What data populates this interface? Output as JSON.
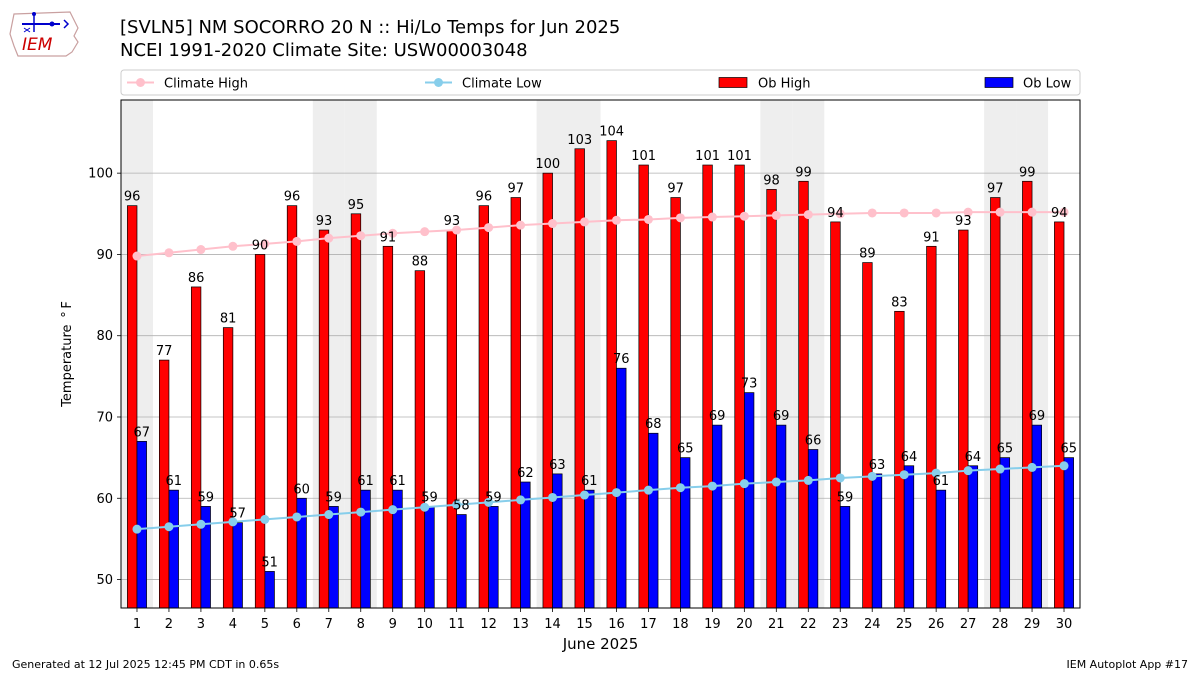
{
  "header": {
    "title_line1": "[SVLN5] NM SOCORRO 20 N :: Hi/Lo Temps for Jun 2025",
    "title_line2": "NCEI 1991-2020 Climate Site: USW00003048",
    "logo_text": "IEM"
  },
  "footer": {
    "left": "Generated at 12 Jul 2025 12:45 PM CDT in 0.65s",
    "right": "IEM Autoplot App #17"
  },
  "colors": {
    "ob_high": "#ff0000",
    "ob_low": "#0000ff",
    "climate_high": "#ffc0cb",
    "climate_low": "#87ceeb",
    "weekend_shade": "#eeeeee"
  },
  "chart_data": {
    "type": "bar",
    "xlabel": "June 2025",
    "ylabel": "Temperature $^\\circ$F",
    "ylim": [
      46.5,
      109
    ],
    "yticks": [
      50,
      60,
      70,
      80,
      90,
      100
    ],
    "grid": "horizontal",
    "legend_placement": "top",
    "categories": [
      "1",
      "2",
      "3",
      "4",
      "5",
      "6",
      "7",
      "8",
      "9",
      "10",
      "11",
      "12",
      "13",
      "14",
      "15",
      "16",
      "17",
      "18",
      "19",
      "20",
      "21",
      "22",
      "23",
      "24",
      "25",
      "26",
      "27",
      "28",
      "29",
      "30"
    ],
    "shaded_days": [
      1,
      7,
      8,
      14,
      15,
      21,
      22,
      28,
      29
    ],
    "series": [
      {
        "name": "Ob High",
        "kind": "bar",
        "color": "#ff0000",
        "values": [
          96,
          77,
          86,
          81,
          90,
          96,
          93,
          95,
          91,
          88,
          93,
          96,
          97,
          100,
          103,
          104,
          101,
          97,
          101,
          101,
          98,
          99,
          94,
          89,
          83,
          91,
          93,
          97,
          99,
          94
        ],
        "labels": [
          "96",
          "77",
          "86",
          "81",
          "90",
          "96",
          "93",
          "95",
          "91",
          "88",
          "93",
          "96",
          "97",
          "100",
          "103",
          "104",
          "101",
          "97",
          "101",
          "101",
          "98",
          "99",
          "94",
          "89",
          "83",
          "91",
          "93",
          "97",
          "99",
          "94"
        ]
      },
      {
        "name": "Ob Low",
        "kind": "bar",
        "color": "#0000ff",
        "values": [
          67,
          61,
          59,
          57,
          51,
          60,
          59,
          61,
          61,
          59,
          58,
          59,
          62,
          63,
          61,
          76,
          68,
          65,
          69,
          73,
          69,
          66,
          59,
          63,
          64,
          61,
          64,
          65,
          69,
          65
        ],
        "labels": [
          "67",
          "61",
          "59",
          "57",
          "51",
          "60",
          "59",
          "61",
          "61",
          "59",
          "58",
          "59",
          "62",
          "63",
          "61",
          "76",
          "68",
          "65",
          "69",
          "73",
          "69",
          "66",
          "59",
          "63",
          "64",
          "61",
          "64",
          "65",
          "69",
          "65"
        ]
      },
      {
        "name": "Climate High",
        "kind": "line",
        "color": "#ffc0cb",
        "values": [
          89.8,
          90.2,
          90.6,
          91.0,
          91.3,
          91.6,
          92.0,
          92.3,
          92.6,
          92.8,
          93.0,
          93.3,
          93.6,
          93.8,
          94.0,
          94.2,
          94.3,
          94.5,
          94.6,
          94.7,
          94.8,
          94.9,
          95.0,
          95.1,
          95.1,
          95.1,
          95.2,
          95.2,
          95.2,
          95.2
        ]
      },
      {
        "name": "Climate Low",
        "kind": "line",
        "color": "#87ceeb",
        "values": [
          56.2,
          56.5,
          56.8,
          57.1,
          57.4,
          57.7,
          58.0,
          58.3,
          58.6,
          58.9,
          59.2,
          59.5,
          59.8,
          60.1,
          60.4,
          60.7,
          61.0,
          61.3,
          61.5,
          61.8,
          62.0,
          62.2,
          62.5,
          62.7,
          62.9,
          63.1,
          63.4,
          63.6,
          63.8,
          64.0
        ]
      }
    ]
  }
}
